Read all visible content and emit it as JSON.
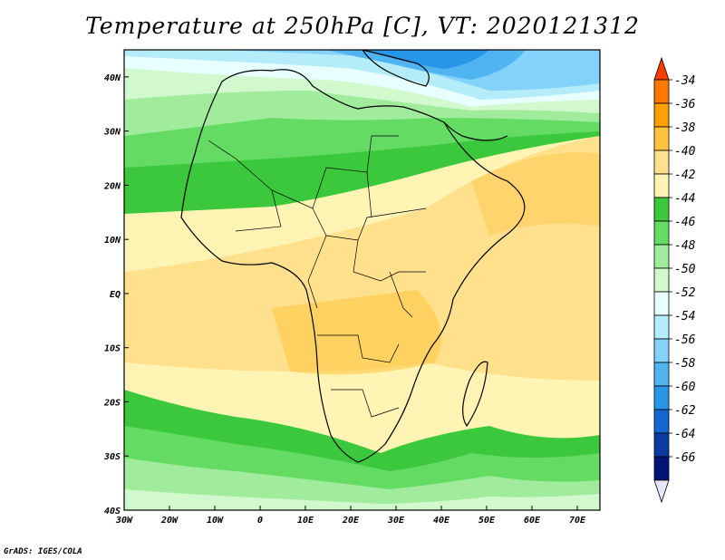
{
  "title": "Temperature at 250hPa [C], VT: 2020121312",
  "credit": "GrADS: IGES/COLA",
  "map": {
    "lon_labels": [
      "30W",
      "20W",
      "10W",
      "0",
      "10E",
      "20E",
      "30E",
      "40E",
      "50E",
      "60E",
      "70E"
    ],
    "lat_labels": [
      "40N",
      "30N",
      "20N",
      "10N",
      "EQ",
      "10S",
      "20S",
      "30S",
      "40S"
    ],
    "lon_range": [
      -30,
      75
    ],
    "lat_range": [
      -40,
      45
    ]
  },
  "colorbar": {
    "labels": [
      "-34",
      "-36",
      "-38",
      "-40",
      "-42",
      "-44",
      "-46",
      "-48",
      "-50",
      "-52",
      "-54",
      "-56",
      "-58",
      "-60",
      "-62",
      "-64",
      "-66"
    ],
    "colors": [
      "#ff3c00",
      "#ff7800",
      "#ffa000",
      "#ffc43c",
      "#ffe08c",
      "#fff4b4",
      "#3cc83c",
      "#64dc64",
      "#a0ec9c",
      "#d2f8ce",
      "#e8ffff",
      "#b4ecfa",
      "#82d2fa",
      "#50b4f0",
      "#2896e6",
      "#1464d2",
      "#0a3ca0",
      "#001478",
      "#e6e6ff"
    ]
  },
  "chart_data": {
    "type": "heatmap",
    "title": "Temperature at 250hPa [C], VT: 2020121312",
    "x_ticks": [
      "30W",
      "20W",
      "10W",
      "0",
      "10E",
      "20E",
      "30E",
      "40E",
      "50E",
      "60E",
      "70E"
    ],
    "y_ticks": [
      "40N",
      "30N",
      "20N",
      "10N",
      "EQ",
      "10S",
      "20S",
      "30S",
      "40S"
    ],
    "color_scale_levels": [
      -34,
      -36,
      -38,
      -40,
      -42,
      -44,
      -46,
      -48,
      -50,
      -52,
      -54,
      -56,
      -58,
      -60,
      -62,
      -64,
      -66
    ],
    "field_summary": {
      "tropics_0_15N": "-42 to -44",
      "equator_to_20S_africa": "-40 to -42",
      "sahara_15N_30N": "-46 to -50",
      "mediterranean_35N_45N": "-52 to -58",
      "south_atlantic_indian_25S_40S": "-46 to -50"
    }
  }
}
